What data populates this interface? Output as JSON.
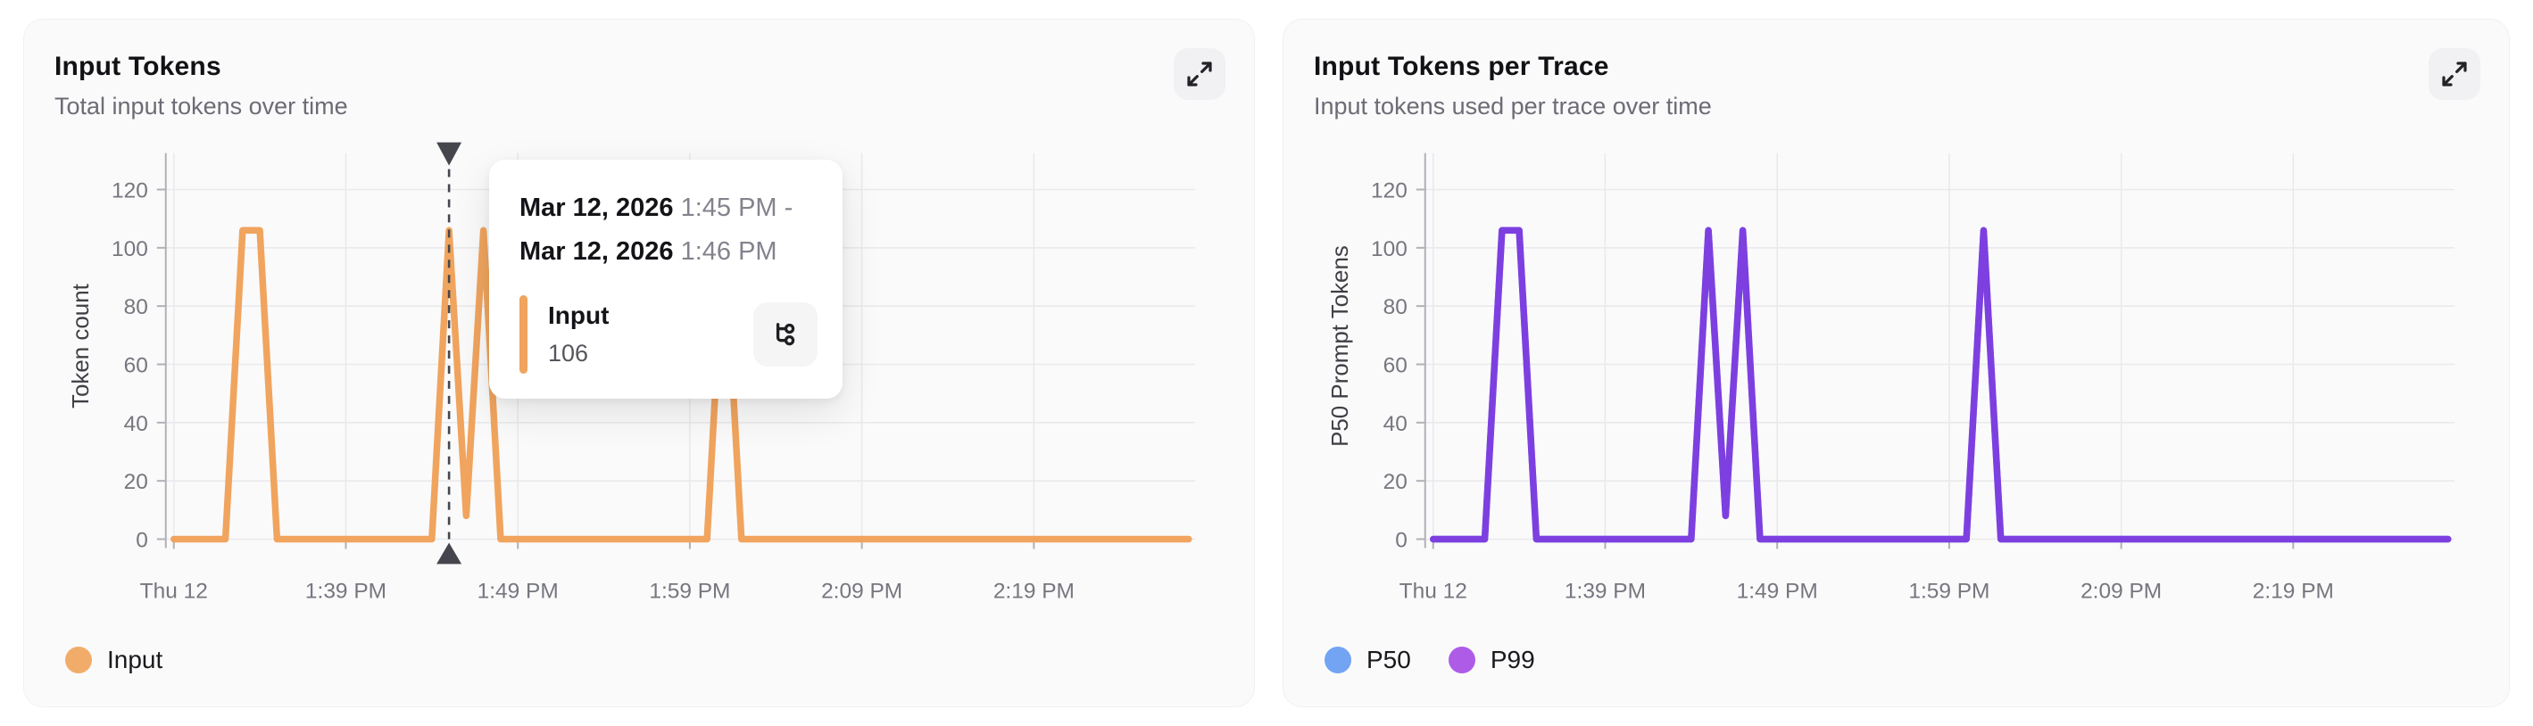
{
  "theme": {
    "page_bg": "#ffffff",
    "card_bg": "#fafafa",
    "grid_color": "#eaeaed",
    "axis_color": "#b0b0b8",
    "tick_label_color": "#76767f",
    "axis_label_color": "#3f3f46",
    "crosshair_color": "#45454d",
    "orange": "#f0a45e",
    "violet_line": "#7e3fe0",
    "blue_line": "#72a4f3"
  },
  "left_card": {
    "title": "Input Tokens",
    "subtitle": "Total input tokens over time",
    "expand_icon": "expand-icon",
    "legend": [
      {
        "label": "Input",
        "color": "#f2ac6a"
      }
    ]
  },
  "right_card": {
    "title": "Input Tokens per Trace",
    "subtitle": "Input tokens used per trace over time",
    "expand_icon": "expand-icon",
    "legend": [
      {
        "label": "P50",
        "color": "#72a4f3"
      },
      {
        "label": "P99",
        "color": "#ae5be8"
      }
    ]
  },
  "tooltip": {
    "range_start_date": "Mar 12, 2026",
    "range_start_time": "1:45 PM",
    "range_separator": "-",
    "range_end_date": "Mar 12, 2026",
    "range_end_time": "1:46 PM",
    "series_label": "Input",
    "series_value": "106",
    "marker_color": "#f0a45e",
    "action_icon": "trace-tree-icon"
  },
  "chart_data": [
    {
      "type": "line",
      "title": "Input Tokens",
      "ylabel": "Token count",
      "xlabel": "",
      "ylim": [
        0,
        130
      ],
      "y_ticks": [
        0,
        20,
        40,
        60,
        80,
        100,
        120
      ],
      "x_tick_labels": [
        "Thu 12",
        "1:39 PM",
        "1:49 PM",
        "1:59 PM",
        "2:09 PM",
        "2:19 PM"
      ],
      "x_start": "1:29 PM",
      "x_end": "2:28 PM",
      "x_interval_minutes": 1,
      "grid": true,
      "legend_position": "bottom-left",
      "crosshair": {
        "time": "1:45 PM",
        "index": 16
      },
      "series": [
        {
          "name": "Input",
          "color": "#f0a45e",
          "values": [
            0,
            0,
            0,
            0,
            106,
            106,
            0,
            0,
            0,
            0,
            0,
            0,
            0,
            0,
            0,
            0,
            106,
            8,
            106,
            0,
            0,
            0,
            0,
            0,
            0,
            0,
            0,
            0,
            0,
            0,
            0,
            0,
            106,
            0,
            0,
            0,
            0,
            0,
            0,
            0,
            0,
            0,
            0,
            0,
            0,
            0,
            0,
            0,
            0,
            0,
            0,
            0,
            0,
            0,
            0,
            0,
            0,
            0,
            0,
            0
          ]
        }
      ]
    },
    {
      "type": "line",
      "title": "Input Tokens per Trace",
      "ylabel": "P50 Prompt Tokens",
      "xlabel": "",
      "ylim": [
        0,
        130
      ],
      "y_ticks": [
        0,
        20,
        40,
        60,
        80,
        100,
        120
      ],
      "x_tick_labels": [
        "Thu 12",
        "1:39 PM",
        "1:49 PM",
        "1:59 PM",
        "2:09 PM",
        "2:19 PM"
      ],
      "x_start": "1:29 PM",
      "x_end": "2:28 PM",
      "x_interval_minutes": 1,
      "grid": true,
      "legend_position": "bottom-left",
      "crosshair": null,
      "series": [
        {
          "name": "P50",
          "color": "#72a4f3",
          "values": [
            0,
            0,
            0,
            0,
            106,
            106,
            0,
            0,
            0,
            0,
            0,
            0,
            0,
            0,
            0,
            0,
            106,
            8,
            106,
            0,
            0,
            0,
            0,
            0,
            0,
            0,
            0,
            0,
            0,
            0,
            0,
            0,
            106,
            0,
            0,
            0,
            0,
            0,
            0,
            0,
            0,
            0,
            0,
            0,
            0,
            0,
            0,
            0,
            0,
            0,
            0,
            0,
            0,
            0,
            0,
            0,
            0,
            0,
            0,
            0
          ]
        },
        {
          "name": "P99",
          "color": "#7e3fe0",
          "values": [
            0,
            0,
            0,
            0,
            106,
            106,
            0,
            0,
            0,
            0,
            0,
            0,
            0,
            0,
            0,
            0,
            106,
            8,
            106,
            0,
            0,
            0,
            0,
            0,
            0,
            0,
            0,
            0,
            0,
            0,
            0,
            0,
            106,
            0,
            0,
            0,
            0,
            0,
            0,
            0,
            0,
            0,
            0,
            0,
            0,
            0,
            0,
            0,
            0,
            0,
            0,
            0,
            0,
            0,
            0,
            0,
            0,
            0,
            0,
            0
          ]
        }
      ]
    }
  ]
}
